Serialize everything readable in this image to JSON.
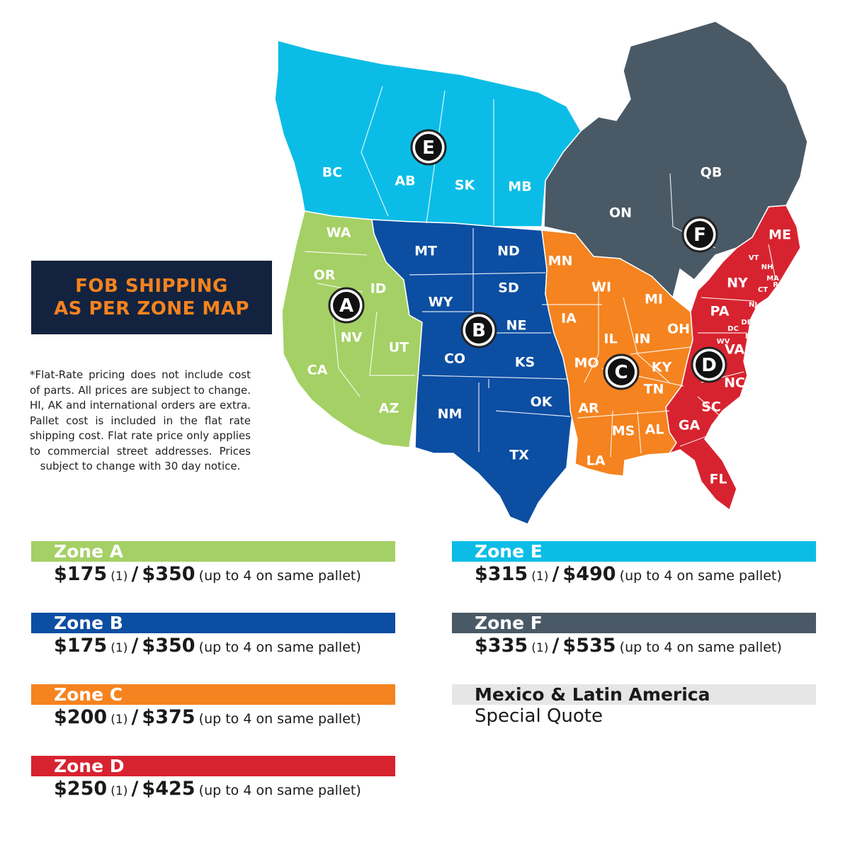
{
  "title": {
    "line1": "FOB SHIPPING",
    "line2": "AS PER ZONE MAP",
    "color": "#f5831f",
    "background": "#13233f"
  },
  "footnote": "*Flat-Rate pricing does not include cost of parts. All prices are subject to change. HI, AK and international orders are extra. Pallet cost is included in the flat rate shipping cost. Flat rate price only applies to commercial street addresses. Prices subject to change with 30 day notice.",
  "map": {
    "zone_colors": {
      "A": "#a4d065",
      "B": "#0c4ea2",
      "C": "#f5831f",
      "D": "#d7232f",
      "E": "#0bbde6",
      "F": "#4a5966"
    },
    "markers": [
      "A",
      "B",
      "C",
      "D",
      "E",
      "F"
    ],
    "state_labels": {
      "BC": "BC",
      "AB": "AB",
      "SK": "SK",
      "MB": "MB",
      "ON": "ON",
      "QB": "QB",
      "WA": "WA",
      "OR": "OR",
      "ID": "ID",
      "NV": "NV",
      "CA": "CA",
      "UT": "UT",
      "AZ": "AZ",
      "MT": "MT",
      "ND": "ND",
      "SD": "SD",
      "WY": "WY",
      "NE": "NE",
      "CO": "CO",
      "KS": "KS",
      "NM": "NM",
      "OK": "OK",
      "TX": "TX",
      "MN": "MN",
      "WI": "WI",
      "MI": "MI",
      "IA": "IA",
      "IL": "IL",
      "IN": "IN",
      "OH": "OH",
      "MO": "MO",
      "KY": "KY",
      "TN": "TN",
      "AR": "AR",
      "MS": "MS",
      "AL": "AL",
      "LA": "LA",
      "ME": "ME",
      "VT": "VT",
      "NH": "NH",
      "MA": "MA",
      "RI": "RI",
      "CT": "CT",
      "NY": "NY",
      "NJ": "NJ",
      "PA": "PA",
      "DE": "DE",
      "MD": "MD",
      "DC": "DC",
      "WV": "WV",
      "VA": "VA",
      "NC": "NC",
      "SC": "SC",
      "GA": "GA",
      "FL": "FL"
    }
  },
  "zones": [
    {
      "name": "Zone A",
      "color": "#a4d065",
      "single": "$175",
      "single_qty": "(1)",
      "sep": "/",
      "multi": "$350",
      "note": "(up to 4 on same pallet)"
    },
    {
      "name": "Zone B",
      "color": "#0c4ea2",
      "single": "$175",
      "single_qty": "(1)",
      "sep": "/",
      "multi": "$350",
      "note": "(up to 4 on same pallet)"
    },
    {
      "name": "Zone C",
      "color": "#f5831f",
      "single": "$200",
      "single_qty": "(1)",
      "sep": "/",
      "multi": "$375",
      "note": "(up to 4 on same pallet)"
    },
    {
      "name": "Zone D",
      "color": "#d7232f",
      "single": "$250",
      "single_qty": "(1)",
      "sep": "/",
      "multi": "$425",
      "note": "(up to 4 on same pallet)"
    },
    {
      "name": "Zone E",
      "color": "#0bbde6",
      "single": "$315",
      "single_qty": "(1)",
      "sep": "/",
      "multi": "$490",
      "note": "(up to 4 on same pallet)"
    },
    {
      "name": "Zone F",
      "color": "#4a5966",
      "single": "$335",
      "single_qty": "(1)",
      "sep": "/",
      "multi": "$535",
      "note": "(up to 4 on same pallet)"
    }
  ],
  "latam": {
    "name": "Mexico & Latin America",
    "quote": "Special Quote"
  }
}
